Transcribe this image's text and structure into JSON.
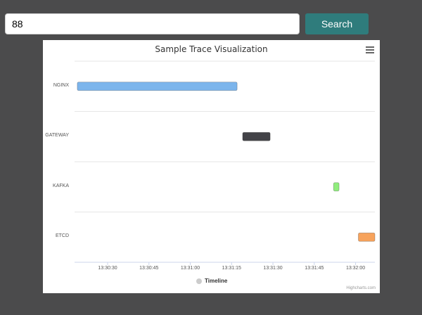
{
  "search": {
    "value": "88",
    "button_label": "Search"
  },
  "chart_data": {
    "type": "bar",
    "title": "Sample Trace Visualization",
    "categories": [
      "NGINX",
      "GATEWAY",
      "KAFKA",
      "ETCD"
    ],
    "x_ticks": [
      "13:30:30",
      "13:30:45",
      "13:31:00",
      "13:31:15",
      "13:31:30",
      "13:31:45",
      "13:32:00"
    ],
    "xlim": [
      "13:30:18",
      "13:32:07"
    ],
    "series": [
      {
        "name": "Timeline",
        "points": [
          {
            "category": "NGINX",
            "start": "13:30:19",
            "end": "13:31:17",
            "color": "#7cb5ec"
          },
          {
            "category": "GATEWAY",
            "start": "13:31:19",
            "end": "13:31:29",
            "color": "#434348"
          },
          {
            "category": "KAFKA",
            "start": "13:31:52",
            "end": "13:31:54",
            "color": "#90ed7d"
          },
          {
            "category": "ETCD",
            "start": "13:32:01",
            "end": "13:32:07",
            "color": "#f7a35c"
          }
        ]
      }
    ],
    "legend_position": "bottom-center",
    "grid": true,
    "credits": "Highcharts.com"
  }
}
